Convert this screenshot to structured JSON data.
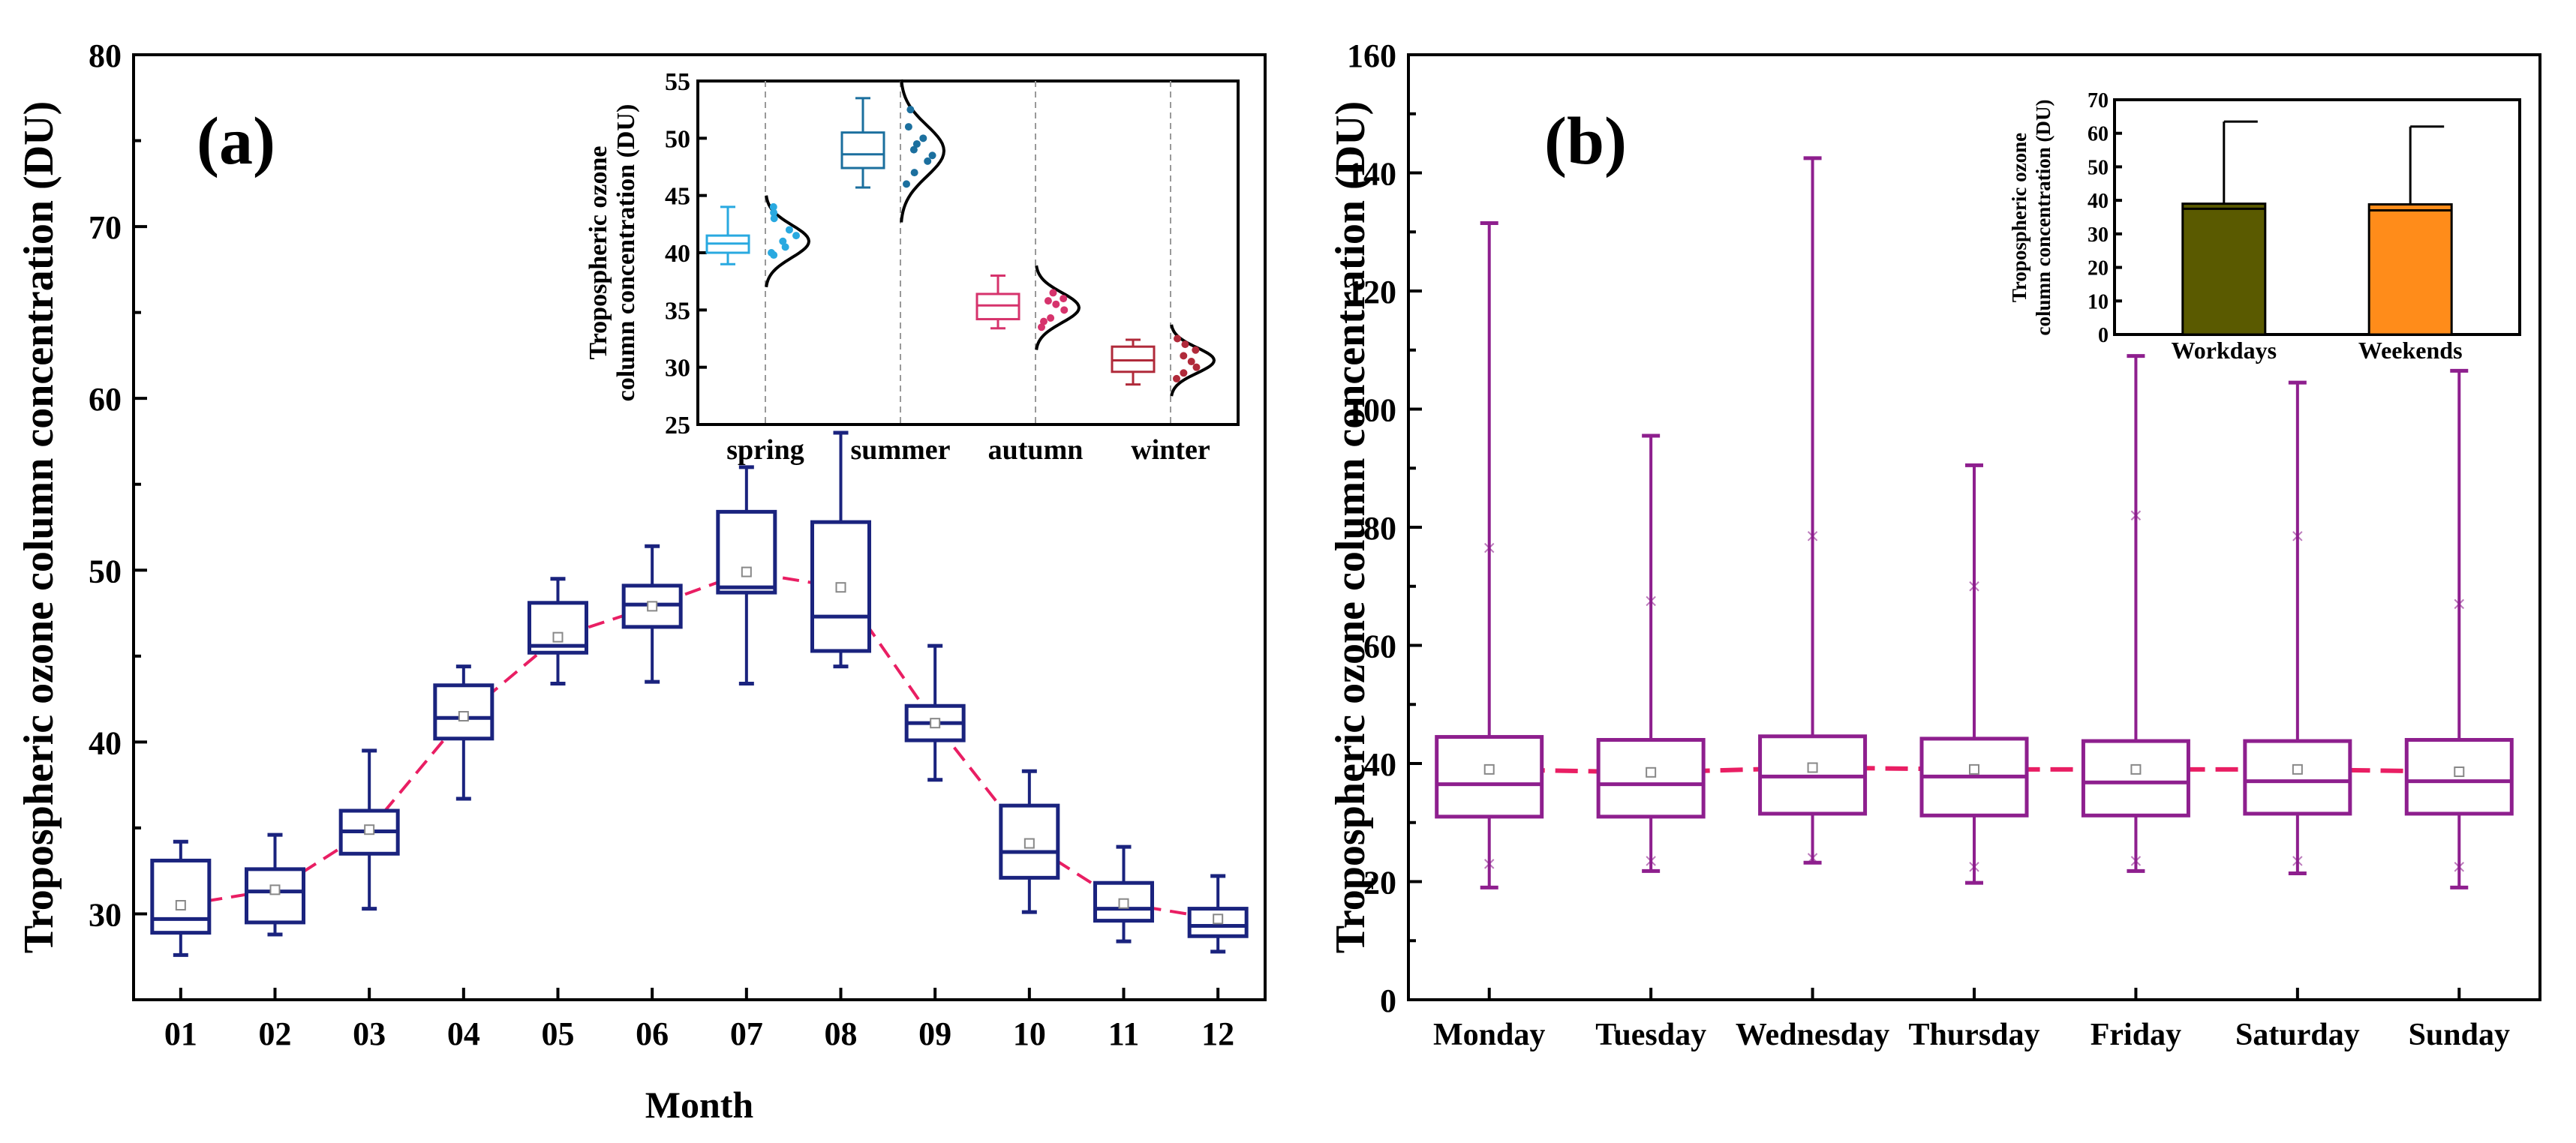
{
  "panel_a": {
    "label": "(a)",
    "chart_data": {
      "type": "box",
      "xlabel": "Month",
      "ylabel": "Tropospheric ozone column concentration (DU)",
      "ylim": [
        25,
        80
      ],
      "yticks": [
        30,
        40,
        50,
        60,
        70,
        80
      ],
      "categories": [
        "01",
        "02",
        "03",
        "04",
        "05",
        "06",
        "07",
        "08",
        "09",
        "10",
        "11",
        "12"
      ],
      "boxes": [
        {
          "whislo": 27.6,
          "q1": 28.9,
          "med": 29.7,
          "q3": 33.1,
          "whishi": 34.2,
          "mean": 30.5
        },
        {
          "whislo": 28.8,
          "q1": 29.5,
          "med": 31.3,
          "q3": 32.6,
          "whishi": 34.6,
          "mean": 31.4
        },
        {
          "whislo": 30.3,
          "q1": 33.5,
          "med": 34.8,
          "q3": 36.0,
          "whishi": 39.5,
          "mean": 34.9
        },
        {
          "whislo": 36.7,
          "q1": 40.2,
          "med": 41.4,
          "q3": 43.3,
          "whishi": 44.4,
          "mean": 41.5
        },
        {
          "whislo": 43.4,
          "q1": 45.2,
          "med": 45.6,
          "q3": 48.1,
          "whishi": 49.5,
          "mean": 46.1
        },
        {
          "whislo": 43.5,
          "q1": 46.7,
          "med": 48.0,
          "q3": 49.1,
          "whishi": 51.4,
          "mean": 47.9
        },
        {
          "whislo": 43.4,
          "q1": 48.7,
          "med": 49.0,
          "q3": 53.4,
          "whishi": 56.0,
          "mean": 49.9
        },
        {
          "whislo": 44.4,
          "q1": 45.3,
          "med": 47.3,
          "q3": 52.8,
          "whishi": 58.0,
          "mean": 49.0
        },
        {
          "whislo": 37.8,
          "q1": 40.1,
          "med": 41.1,
          "q3": 42.1,
          "whishi": 45.6,
          "mean": 41.1
        },
        {
          "whislo": 30.1,
          "q1": 32.1,
          "med": 33.6,
          "q3": 36.3,
          "whishi": 38.3,
          "mean": 34.1
        },
        {
          "whislo": 28.4,
          "q1": 29.6,
          "med": 30.3,
          "q3": 31.8,
          "whishi": 33.9,
          "mean": 30.6
        },
        {
          "whislo": 27.8,
          "q1": 28.7,
          "med": 29.3,
          "q3": 30.3,
          "whishi": 32.2,
          "mean": 29.7
        }
      ],
      "box_color": "#1a237e",
      "mean_line_color": "#e91e63"
    },
    "inset": {
      "chart_data": {
        "type": "half-violin",
        "ylabel_line1": "Tropospheric ozone",
        "ylabel_line2": "column concentration (DU)",
        "ylim": [
          25,
          55
        ],
        "yticks": [
          25,
          30,
          35,
          40,
          45,
          50,
          55
        ],
        "categories": [
          "spring",
          "summer",
          "autumn",
          "winter"
        ],
        "colors": [
          "#29a9e0",
          "#1b6f9e",
          "#d6336c",
          "#b02a3a"
        ],
        "boxes": [
          {
            "whislo": 39.0,
            "q1": 40.0,
            "med": 40.8,
            "q3": 41.5,
            "whishi": 44.0,
            "mean": 41.0
          },
          {
            "whislo": 45.7,
            "q1": 47.4,
            "med": 48.6,
            "q3": 50.5,
            "whishi": 53.5,
            "mean": 48.9
          },
          {
            "whislo": 33.4,
            "q1": 34.2,
            "med": 35.4,
            "q3": 36.4,
            "whishi": 38.0,
            "mean": 35.2
          },
          {
            "whislo": 28.5,
            "q1": 29.6,
            "med": 30.6,
            "q3": 31.8,
            "whishi": 32.4,
            "mean": 30.6
          }
        ],
        "points": [
          [
            40.0,
            41.0,
            42.0,
            43.0,
            44.0,
            39.8,
            40.5,
            41.5,
            43.5
          ],
          [
            46.0,
            47.0,
            48.0,
            49.0,
            50.0,
            51.0,
            52.5,
            48.5,
            49.5
          ],
          [
            33.5,
            34.3,
            35.0,
            35.8,
            36.5,
            34.0,
            35.5,
            36.0
          ],
          [
            29.0,
            29.5,
            30.0,
            31.0,
            32.0,
            32.5,
            30.5,
            31.5
          ]
        ]
      }
    }
  },
  "panel_b": {
    "label": "(b)",
    "chart_data": {
      "type": "box",
      "xlabel": "",
      "ylabel": "Tropospheric ozone column concentration (DU)",
      "ylim": [
        0,
        160
      ],
      "yticks": [
        0,
        20,
        40,
        60,
        80,
        100,
        120,
        140,
        160
      ],
      "categories": [
        "Monday",
        "Tuesday",
        "Wednesday",
        "Thursday",
        "Friday",
        "Saturday",
        "Sunday"
      ],
      "boxes": [
        {
          "whislo": 19.0,
          "q1": 31.0,
          "med": 36.5,
          "q3": 44.5,
          "whishi": 131.5,
          "mean": 39.0,
          "p1": 23.0,
          "p99": 76.5
        },
        {
          "whislo": 21.8,
          "q1": 31.0,
          "med": 36.5,
          "q3": 44.0,
          "whishi": 95.5,
          "mean": 38.5,
          "p1": 23.5,
          "p99": 67.5
        },
        {
          "whislo": 23.2,
          "q1": 31.5,
          "med": 37.8,
          "q3": 44.6,
          "whishi": 142.5,
          "mean": 39.3,
          "p1": 24.0,
          "p99": 78.5
        },
        {
          "whislo": 19.8,
          "q1": 31.2,
          "med": 37.8,
          "q3": 44.2,
          "whishi": 90.5,
          "mean": 39.0,
          "p1": 22.5,
          "p99": 70.0
        },
        {
          "whislo": 21.8,
          "q1": 31.2,
          "med": 36.8,
          "q3": 43.8,
          "whishi": 109.0,
          "mean": 39.0,
          "p1": 23.5,
          "p99": 82.0
        },
        {
          "whislo": 21.4,
          "q1": 31.5,
          "med": 37.0,
          "q3": 43.8,
          "whishi": 104.5,
          "mean": 39.0,
          "p1": 23.5,
          "p99": 78.5
        },
        {
          "whislo": 19.0,
          "q1": 31.5,
          "med": 37.0,
          "q3": 44.0,
          "whishi": 106.5,
          "mean": 38.6,
          "p1": 22.5,
          "p99": 67.0
        }
      ],
      "box_color": "#8e1f8e",
      "mean_line_color": "#e91e63"
    },
    "inset": {
      "chart_data": {
        "type": "bar",
        "ylabel_line1": "Tropospheric ozone",
        "ylabel_line2": "column concentration (DU)",
        "ylim": [
          0,
          70
        ],
        "yticks": [
          0,
          10,
          20,
          30,
          40,
          50,
          60,
          70
        ],
        "categories": [
          "Workdays",
          "Weekends"
        ],
        "values": [
          39.0,
          38.8
        ],
        "lines": [
          37.5,
          37.0
        ],
        "errors_upper": [
          63.5,
          62.0
        ],
        "colors": [
          "#5a5a00",
          "#ff8c1a"
        ]
      }
    }
  }
}
